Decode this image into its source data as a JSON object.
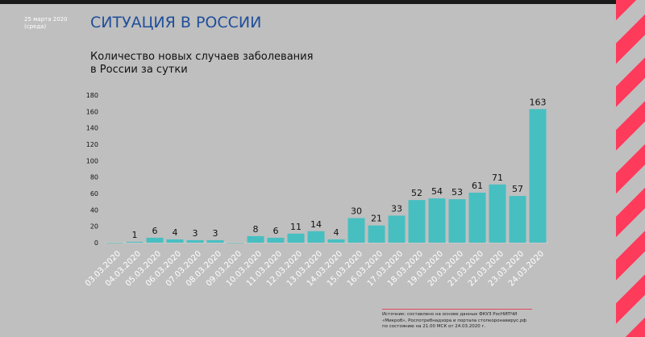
{
  "header": {
    "date": "25 марта 2020",
    "weekday": "(среда)",
    "title": "СИТУАЦИЯ В РОССИИ",
    "subtitle_line1": "Количество новых случаев заболевания",
    "subtitle_line2": "в России за сутки"
  },
  "source": {
    "line1": "Источник: составлено на основе данных ФКУЗ РосНИПЧИ",
    "line2": "«Микроб», Роспотребнадзора и портала стопкоронавирус.рф",
    "line3": "по состоянию на 21.00 МСК от 24.03.2020 г."
  },
  "colors": {
    "bar": "#47bfc1",
    "title": "#1f4e9a",
    "stripe": "#ff3b5c"
  },
  "chart_data": {
    "type": "bar",
    "title": "Количество новых случаев заболевания в России за сутки",
    "categories": [
      "03.03.2020",
      "04.03.2020",
      "05.03.2020",
      "06.03.2020",
      "07.03.2020",
      "08.03.2020",
      "09.03.2020",
      "10.03.2020",
      "11.03.2020",
      "12.03.2020",
      "13.03.2020",
      "14.03.2020",
      "15.03.2020",
      "16.03.2020",
      "17.03.2020",
      "18.03.2020",
      "19.03.2020",
      "20.03.2020",
      "21.03.2020",
      "22.03.2020",
      "23.03.2020",
      "24.03.2020"
    ],
    "values": [
      0,
      1,
      6,
      4,
      3,
      3,
      0,
      8,
      6,
      11,
      14,
      4,
      30,
      21,
      33,
      52,
      54,
      53,
      61,
      71,
      57,
      163
    ],
    "labels": [
      "",
      "1",
      "6",
      "4",
      "3",
      "3",
      "",
      "8",
      "6",
      "11",
      "14",
      "4",
      "30",
      "21",
      "33",
      "52",
      "54",
      "53",
      "61",
      "71",
      "57",
      "163"
    ],
    "yticks": [
      0,
      20,
      40,
      60,
      80,
      100,
      120,
      140,
      160,
      180
    ],
    "ylim": [
      0,
      180
    ],
    "grid": false,
    "xlabel": "",
    "ylabel": ""
  }
}
